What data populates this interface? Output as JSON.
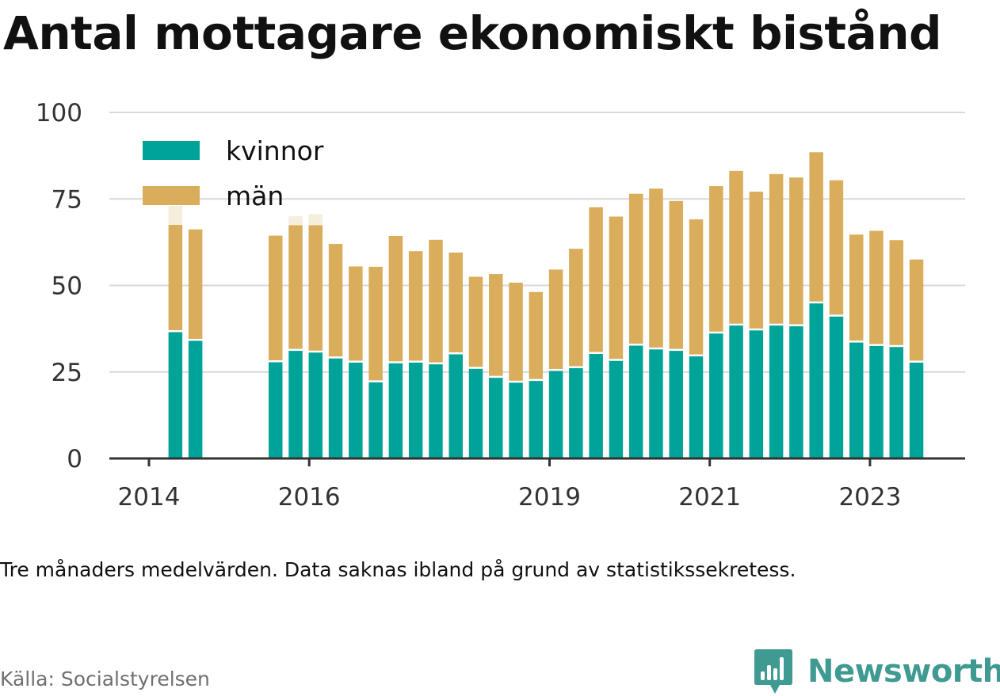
{
  "header": {
    "title": "Antal mottagare ekonomiskt bistånd"
  },
  "footer": {
    "note": "Tre månaders medelvärden. Data saknas ibland på grund av statistikssekretess.",
    "source": "Källa: Socialstyrelsen",
    "brand": "Newsworthy"
  },
  "colors": {
    "kvinnor": "#00a398",
    "man": "#d9ad5b",
    "faded": "#f6eedd",
    "grid": "#d9d9d9",
    "axis": "#333333",
    "brand": "#3f9a92"
  },
  "icons": {
    "brand_logo": "bar-chart-speech-bubble-icon"
  },
  "chart_data": {
    "type": "bar",
    "stacked": true,
    "xlabel": "",
    "ylabel": "",
    "ylim": [
      0,
      100
    ],
    "yticks": [
      "0",
      "25",
      "50",
      "75",
      "100"
    ],
    "xticks": [
      {
        "label": "2014",
        "x": 2014.0
      },
      {
        "label": "2016",
        "x": 2016.0
      },
      {
        "label": "2019",
        "x": 2019.0
      },
      {
        "label": "2021",
        "x": 2021.0
      },
      {
        "label": "2023",
        "x": 2023.0
      }
    ],
    "legend": {
      "placement": "top-left",
      "entries": [
        {
          "key": "kvinnor",
          "label": "kvinnor"
        },
        {
          "key": "man",
          "label": "män"
        }
      ]
    },
    "grid": true,
    "series": [
      {
        "name": "kvinnor",
        "key": "kvinnor"
      },
      {
        "name": "män",
        "key": "man"
      }
    ],
    "bars": [
      {
        "x": 2014.33,
        "kvinnor": 36.5,
        "man": 31.0,
        "faded_total": 73.0
      },
      {
        "x": 2014.58,
        "kvinnor": 34.0,
        "man": 32.2
      },
      {
        "x": 2015.58,
        "kvinnor": 27.8,
        "man": 36.6
      },
      {
        "x": 2015.83,
        "kvinnor": 31.1,
        "man": 36.3,
        "faded_total": 70.0
      },
      {
        "x": 2016.08,
        "kvinnor": 30.6,
        "man": 36.8,
        "faded_total": 70.6
      },
      {
        "x": 2016.33,
        "kvinnor": 28.9,
        "man": 33.1
      },
      {
        "x": 2016.58,
        "kvinnor": 27.7,
        "man": 27.8
      },
      {
        "x": 2016.83,
        "kvinnor": 22.0,
        "man": 33.4
      },
      {
        "x": 2017.08,
        "kvinnor": 27.5,
        "man": 36.8
      },
      {
        "x": 2017.33,
        "kvinnor": 27.7,
        "man": 32.2
      },
      {
        "x": 2017.58,
        "kvinnor": 27.2,
        "man": 36.0
      },
      {
        "x": 2017.83,
        "kvinnor": 30.1,
        "man": 29.4
      },
      {
        "x": 2018.08,
        "kvinnor": 25.9,
        "man": 26.6
      },
      {
        "x": 2018.33,
        "kvinnor": 23.3,
        "man": 30.0
      },
      {
        "x": 2018.58,
        "kvinnor": 21.9,
        "man": 28.9
      },
      {
        "x": 2018.83,
        "kvinnor": 22.4,
        "man": 25.7
      },
      {
        "x": 2019.08,
        "kvinnor": 25.3,
        "man": 29.3
      },
      {
        "x": 2019.33,
        "kvinnor": 26.1,
        "man": 34.5
      },
      {
        "x": 2019.58,
        "kvinnor": 30.2,
        "man": 42.4
      },
      {
        "x": 2019.83,
        "kvinnor": 28.2,
        "man": 41.7
      },
      {
        "x": 2020.08,
        "kvinnor": 32.6,
        "man": 43.9
      },
      {
        "x": 2020.33,
        "kvinnor": 31.5,
        "man": 46.5
      },
      {
        "x": 2020.58,
        "kvinnor": 31.1,
        "man": 43.3
      },
      {
        "x": 2020.83,
        "kvinnor": 29.5,
        "man": 39.6
      },
      {
        "x": 2021.08,
        "kvinnor": 36.1,
        "man": 42.6
      },
      {
        "x": 2021.33,
        "kvinnor": 38.4,
        "man": 44.7
      },
      {
        "x": 2021.58,
        "kvinnor": 37.0,
        "man": 40.1
      },
      {
        "x": 2021.83,
        "kvinnor": 38.4,
        "man": 43.8
      },
      {
        "x": 2022.08,
        "kvinnor": 38.2,
        "man": 43.0
      },
      {
        "x": 2022.33,
        "kvinnor": 44.8,
        "man": 43.7
      },
      {
        "x": 2022.58,
        "kvinnor": 41.0,
        "man": 39.4
      },
      {
        "x": 2022.83,
        "kvinnor": 33.5,
        "man": 31.2
      },
      {
        "x": 2023.08,
        "kvinnor": 32.5,
        "man": 33.3
      },
      {
        "x": 2023.33,
        "kvinnor": 32.2,
        "man": 30.9
      },
      {
        "x": 2023.58,
        "kvinnor": 27.7,
        "man": 29.8
      }
    ]
  }
}
